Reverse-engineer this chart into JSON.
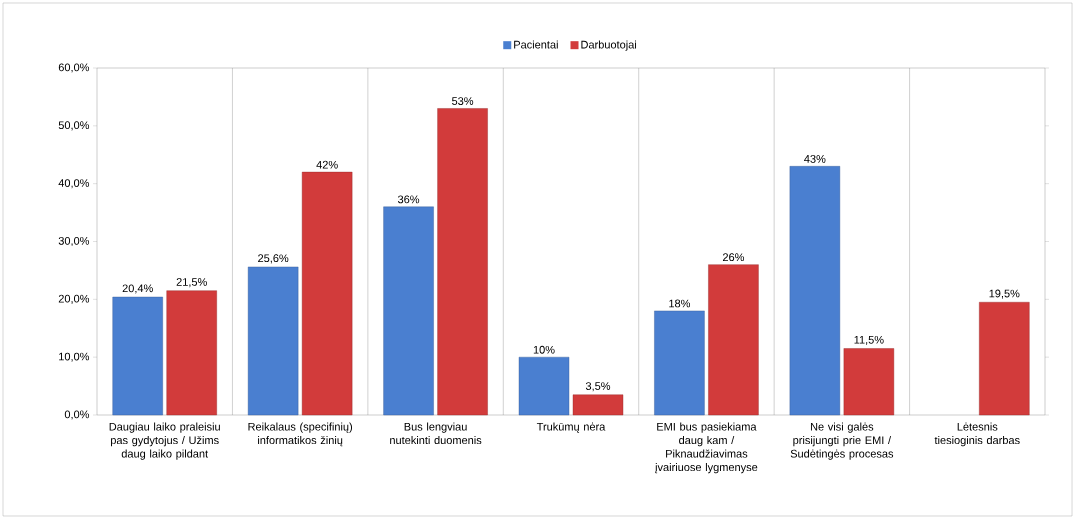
{
  "chart_data": {
    "type": "bar",
    "categories": [
      "Daugiau laiko praleisiu pas gydytojus / Užims daug laiko pildant",
      "Reikalaus (specifinių) informatikos žinių",
      "Bus lengviau nutekinti duomenis",
      "Trukūmų nėra",
      "EMI bus pasiekiama daug kam / Piknaudžiavimas įvairiuose lygmenyse",
      "Ne visi galės prisijungti prie EMI / Sudėtingės procesas",
      "Lėtesnis tiesioginis darbas"
    ],
    "series": [
      {
        "name": "Pacientai",
        "color": "#4a7fd0",
        "values": [
          20.4,
          25.6,
          36,
          10,
          18,
          43,
          null
        ],
        "value_labels": [
          "20,4%",
          "25,6%",
          "36%",
          "10%",
          "18%",
          "43%",
          null
        ]
      },
      {
        "name": "Darbuotojai",
        "color": "#d23b3b",
        "values": [
          21.5,
          42,
          53,
          3.5,
          26,
          11.5,
          19.5
        ],
        "value_labels": [
          "21,5%",
          "42%",
          "53%",
          "3,5%",
          "26%",
          "11,5%",
          "19,5%"
        ]
      }
    ],
    "ylim": [
      0,
      60
    ],
    "yticks": [
      {
        "value": 0,
        "label": "0,0%"
      },
      {
        "value": 10,
        "label": "10,0%"
      },
      {
        "value": 20,
        "label": "20,0%"
      },
      {
        "value": 30,
        "label": "30,0%"
      },
      {
        "value": 40,
        "label": "40,0%"
      },
      {
        "value": 50,
        "label": "50,0%"
      },
      {
        "value": 60,
        "label": "60,0%"
      }
    ],
    "grid": "x",
    "legend": "top"
  }
}
